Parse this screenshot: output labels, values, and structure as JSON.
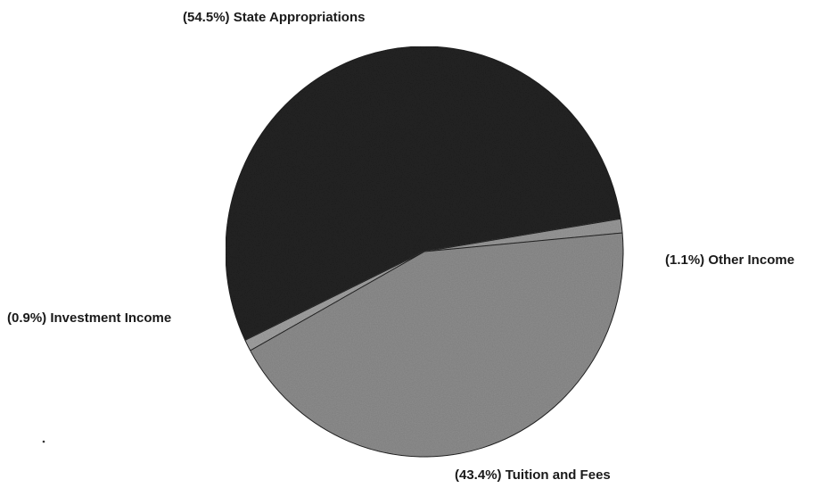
{
  "chart_data": {
    "type": "pie",
    "slices": [
      {
        "label": "(54.5%) State Appropriations",
        "category": "State Appropriations",
        "value": 54.5,
        "color": "#232323"
      },
      {
        "label": "(1.1%) Other Income",
        "category": "Other Income",
        "value": 1.1,
        "color": "#9a9a9a"
      },
      {
        "label": "(43.4%) Tuition and Fees",
        "category": "Tuition and Fees",
        "value": 43.4,
        "color": "#8f8f8f"
      },
      {
        "label": "(0.9%) Investment Income",
        "category": "Investment Income",
        "value": 0.9,
        "color": "#a3a3a3"
      }
    ],
    "legend": "none",
    "grid": false
  }
}
